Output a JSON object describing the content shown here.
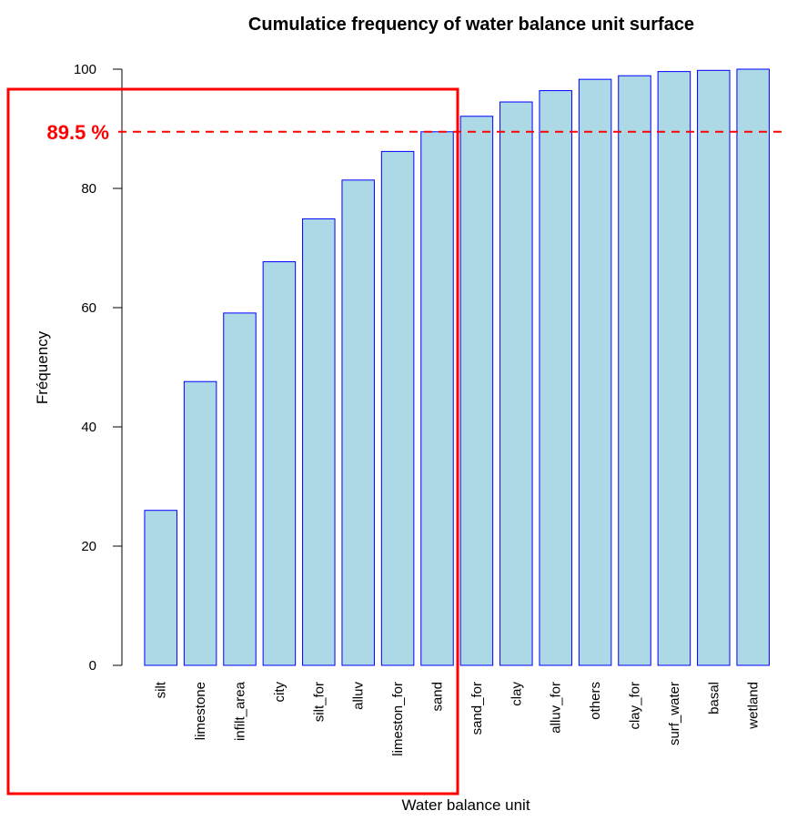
{
  "chart_data": {
    "type": "bar",
    "title": "Cumulatice frequency of water balance unit surface",
    "xlabel": "Water balance unit",
    "ylabel": "Fréquency",
    "ylim": [
      0,
      100
    ],
    "yticks": [
      0,
      20,
      40,
      60,
      80,
      100
    ],
    "categories": [
      "silt",
      "limestone",
      "infilt_area",
      "city",
      "silt_for",
      "alluv",
      "limeston_for",
      "sand",
      "sand_for",
      "clay",
      "alluv_for",
      "others",
      "clay_for",
      "surf_water",
      "basal",
      "wetland"
    ],
    "values": [
      26.0,
      47.6,
      59.1,
      67.7,
      74.9,
      81.4,
      86.2,
      89.5,
      92.1,
      94.5,
      96.4,
      98.3,
      98.9,
      99.6,
      99.8,
      100.0
    ],
    "bar_fill": "#add8e6",
    "bar_stroke": "#0000ff",
    "grid": false,
    "reference_line": {
      "value": 89.5,
      "label": "89.5 %",
      "color": "#ff0000",
      "style": "dashed"
    },
    "highlight_box": {
      "color": "#ff0000",
      "covers_categories": [
        "silt",
        "limestone",
        "infilt_area",
        "city",
        "silt_for",
        "alluv",
        "limeston_for",
        "sand"
      ]
    }
  }
}
